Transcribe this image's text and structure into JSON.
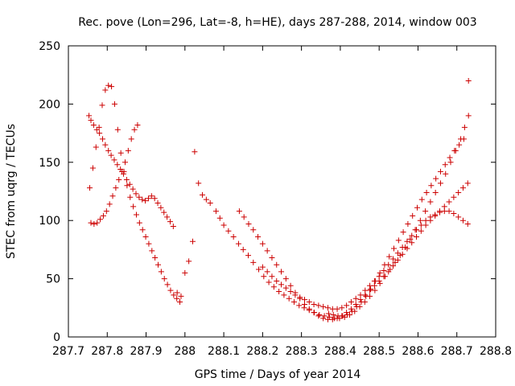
{
  "chart_data": {
    "type": "scatter",
    "title": "Rec. pove (Lon=296, Lat=-8, h=HE), days 287-288, 2014, window 003",
    "xlabel": "GPS time / Days of year 2014",
    "ylabel": "STEC from uqrg / TECUs",
    "xlim": [
      287.7,
      288.8
    ],
    "ylim": [
      0,
      250
    ],
    "xticks": [
      287.7,
      287.8,
      287.9,
      288,
      288.1,
      288.2,
      288.3,
      288.4,
      288.5,
      288.6,
      288.7,
      288.8
    ],
    "xtick_labels": [
      "287.7",
      "287.8",
      "287.9",
      "288",
      "288.1",
      "288.2",
      "288.3",
      "288.4",
      "288.5",
      "288.6",
      "288.7",
      "288.8"
    ],
    "yticks": [
      0,
      50,
      100,
      150,
      200,
      250
    ],
    "ytick_labels": [
      "0",
      "50",
      "100",
      "150",
      "200",
      "250"
    ],
    "grid": false,
    "marker": "+",
    "color": "#cc0000",
    "series": [
      {
        "x": [
          287.753,
          287.758,
          287.765,
          287.773,
          287.78,
          287.788,
          287.795,
          287.803,
          287.81,
          287.818,
          287.826,
          287.834,
          287.842,
          287.85,
          287.858,
          287.866,
          287.874,
          287.882,
          287.89,
          287.898,
          287.906,
          287.914,
          287.922,
          287.93,
          287.938,
          287.946,
          287.954,
          287.962,
          287.97,
          288.025,
          288.035,
          288.045,
          288.055,
          288.065,
          288.08,
          288.09,
          288.1,
          288.112,
          288.125,
          288.138,
          288.15,
          288.163,
          288.176,
          288.19,
          288.203,
          288.216,
          288.229,
          288.242,
          288.255,
          288.268,
          288.281,
          288.294,
          288.307,
          288.32,
          288.333,
          288.346,
          288.359,
          288.372,
          288.385,
          288.398,
          288.411,
          288.424,
          288.437,
          288.45,
          288.463,
          288.476,
          288.489,
          288.502,
          288.515,
          288.528,
          288.541,
          288.554,
          288.567,
          288.58,
          288.593,
          288.606,
          288.619,
          288.632,
          288.645,
          288.658,
          288.671,
          288.684,
          288.697,
          288.71,
          288.72,
          288.73
        ],
        "y": [
          190,
          186,
          182,
          178,
          175,
          170,
          165,
          160,
          156,
          152,
          148,
          144,
          140,
          135,
          131,
          127,
          123,
          120,
          118,
          117,
          119,
          121,
          119,
          115,
          111,
          107,
          103,
          99,
          95,
          159,
          132,
          122,
          118,
          115,
          108,
          102,
          96,
          91,
          86,
          80,
          75,
          70,
          64,
          58,
          52,
          47,
          43,
          39,
          36,
          33,
          30,
          27,
          25,
          23,
          21,
          19,
          18,
          17,
          16,
          16,
          17,
          19,
          22,
          26,
          30,
          35,
          40,
          46,
          52,
          58,
          64,
          70,
          77,
          84,
          92,
          100,
          108,
          116,
          124,
          132,
          140,
          150,
          160,
          170,
          180,
          190
        ]
      },
      {
        "x": [
          287.755,
          287.763,
          287.771,
          287.779,
          287.787,
          287.795,
          287.803,
          287.811,
          287.819,
          287.827,
          287.835,
          287.843,
          287.851,
          287.859,
          287.867,
          287.875,
          287.883,
          287.891,
          287.899,
          287.907,
          287.915,
          287.923,
          287.931,
          287.939,
          287.947,
          287.955,
          287.963,
          287.971,
          287.979,
          287.987,
          288.14,
          288.152,
          288.164,
          288.176,
          288.188,
          288.2,
          288.212,
          288.224,
          288.236,
          288.248,
          288.26,
          288.272,
          288.284,
          288.296,
          288.308,
          288.32,
          288.332,
          288.344,
          288.356,
          288.368,
          288.38,
          288.392,
          288.404,
          288.416,
          288.428,
          288.44,
          288.452,
          288.464,
          288.476,
          288.488,
          288.5,
          288.512,
          288.524,
          288.536,
          288.548,
          288.56,
          288.572,
          288.584,
          288.596,
          288.608,
          288.62,
          288.632,
          288.644,
          288.656,
          288.668,
          288.68,
          288.692,
          288.704,
          288.716,
          288.728
        ],
        "y": [
          128,
          145,
          163,
          180,
          199,
          212,
          216,
          215,
          200,
          178,
          158,
          142,
          130,
          120,
          112,
          105,
          98,
          92,
          86,
          80,
          74,
          68,
          62,
          56,
          50,
          45,
          40,
          36,
          33,
          30,
          108,
          103,
          97,
          92,
          86,
          80,
          74,
          68,
          62,
          56,
          50,
          44,
          38,
          33,
          28,
          24,
          21,
          18,
          16,
          15,
          15,
          16,
          18,
          21,
          24,
          28,
          32,
          36,
          40,
          44,
          48,
          52,
          56,
          61,
          66,
          71,
          76,
          81,
          86,
          91,
          96,
          100,
          104,
          108,
          112,
          116,
          120,
          124,
          128,
          132
        ]
      },
      {
        "x": [
          287.758,
          287.766,
          287.774,
          287.782,
          287.79,
          287.798,
          287.806,
          287.814,
          287.822,
          287.83,
          287.838,
          287.846,
          287.854,
          287.862,
          287.87,
          287.878,
          288.2,
          288.212,
          288.224,
          288.236,
          288.248,
          288.26,
          288.272,
          288.284,
          288.296,
          288.308,
          288.32,
          288.332,
          288.344,
          288.356,
          288.368,
          288.38,
          288.392,
          288.404,
          288.416,
          288.428,
          288.44,
          288.452,
          288.464,
          288.476,
          288.488,
          288.5,
          288.512,
          288.524,
          288.536,
          288.548,
          288.56,
          288.572,
          288.584,
          288.596,
          288.608,
          288.62,
          288.632,
          288.644,
          288.656,
          288.668,
          288.68,
          288.692,
          288.704,
          288.716,
          288.728
        ],
        "y": [
          98,
          97,
          98,
          101,
          104,
          108,
          114,
          121,
          128,
          135,
          142,
          150,
          160,
          170,
          178,
          182,
          60,
          56,
          52,
          48,
          45,
          42,
          39,
          36,
          34,
          32,
          30,
          28,
          27,
          26,
          25,
          24,
          24,
          25,
          27,
          30,
          33,
          36,
          40,
          44,
          48,
          52,
          57,
          62,
          67,
          72,
          77,
          82,
          87,
          92,
          96,
          100,
          103,
          105,
          107,
          108,
          108,
          106,
          103,
          100,
          97
        ]
      },
      {
        "x": [
          287.98,
          287.99,
          288.0,
          288.01,
          288.02,
          288.37,
          288.382,
          288.394,
          288.406,
          288.418,
          288.43,
          288.442,
          288.454,
          288.466,
          288.478,
          288.49,
          288.502,
          288.514,
          288.526,
          288.538,
          288.55,
          288.562,
          288.574,
          288.586,
          288.598,
          288.61,
          288.622,
          288.634,
          288.646,
          288.658,
          288.67,
          288.682,
          288.694,
          288.706,
          288.718,
          288.73
        ],
        "y": [
          38,
          35,
          55,
          65,
          82,
          20,
          19,
          18,
          18,
          19,
          22,
          26,
          30,
          35,
          41,
          48,
          55,
          62,
          69,
          76,
          83,
          90,
          97,
          104,
          111,
          118,
          124,
          130,
          136,
          142,
          148,
          154,
          160,
          165,
          170,
          220
        ]
      }
    ]
  }
}
